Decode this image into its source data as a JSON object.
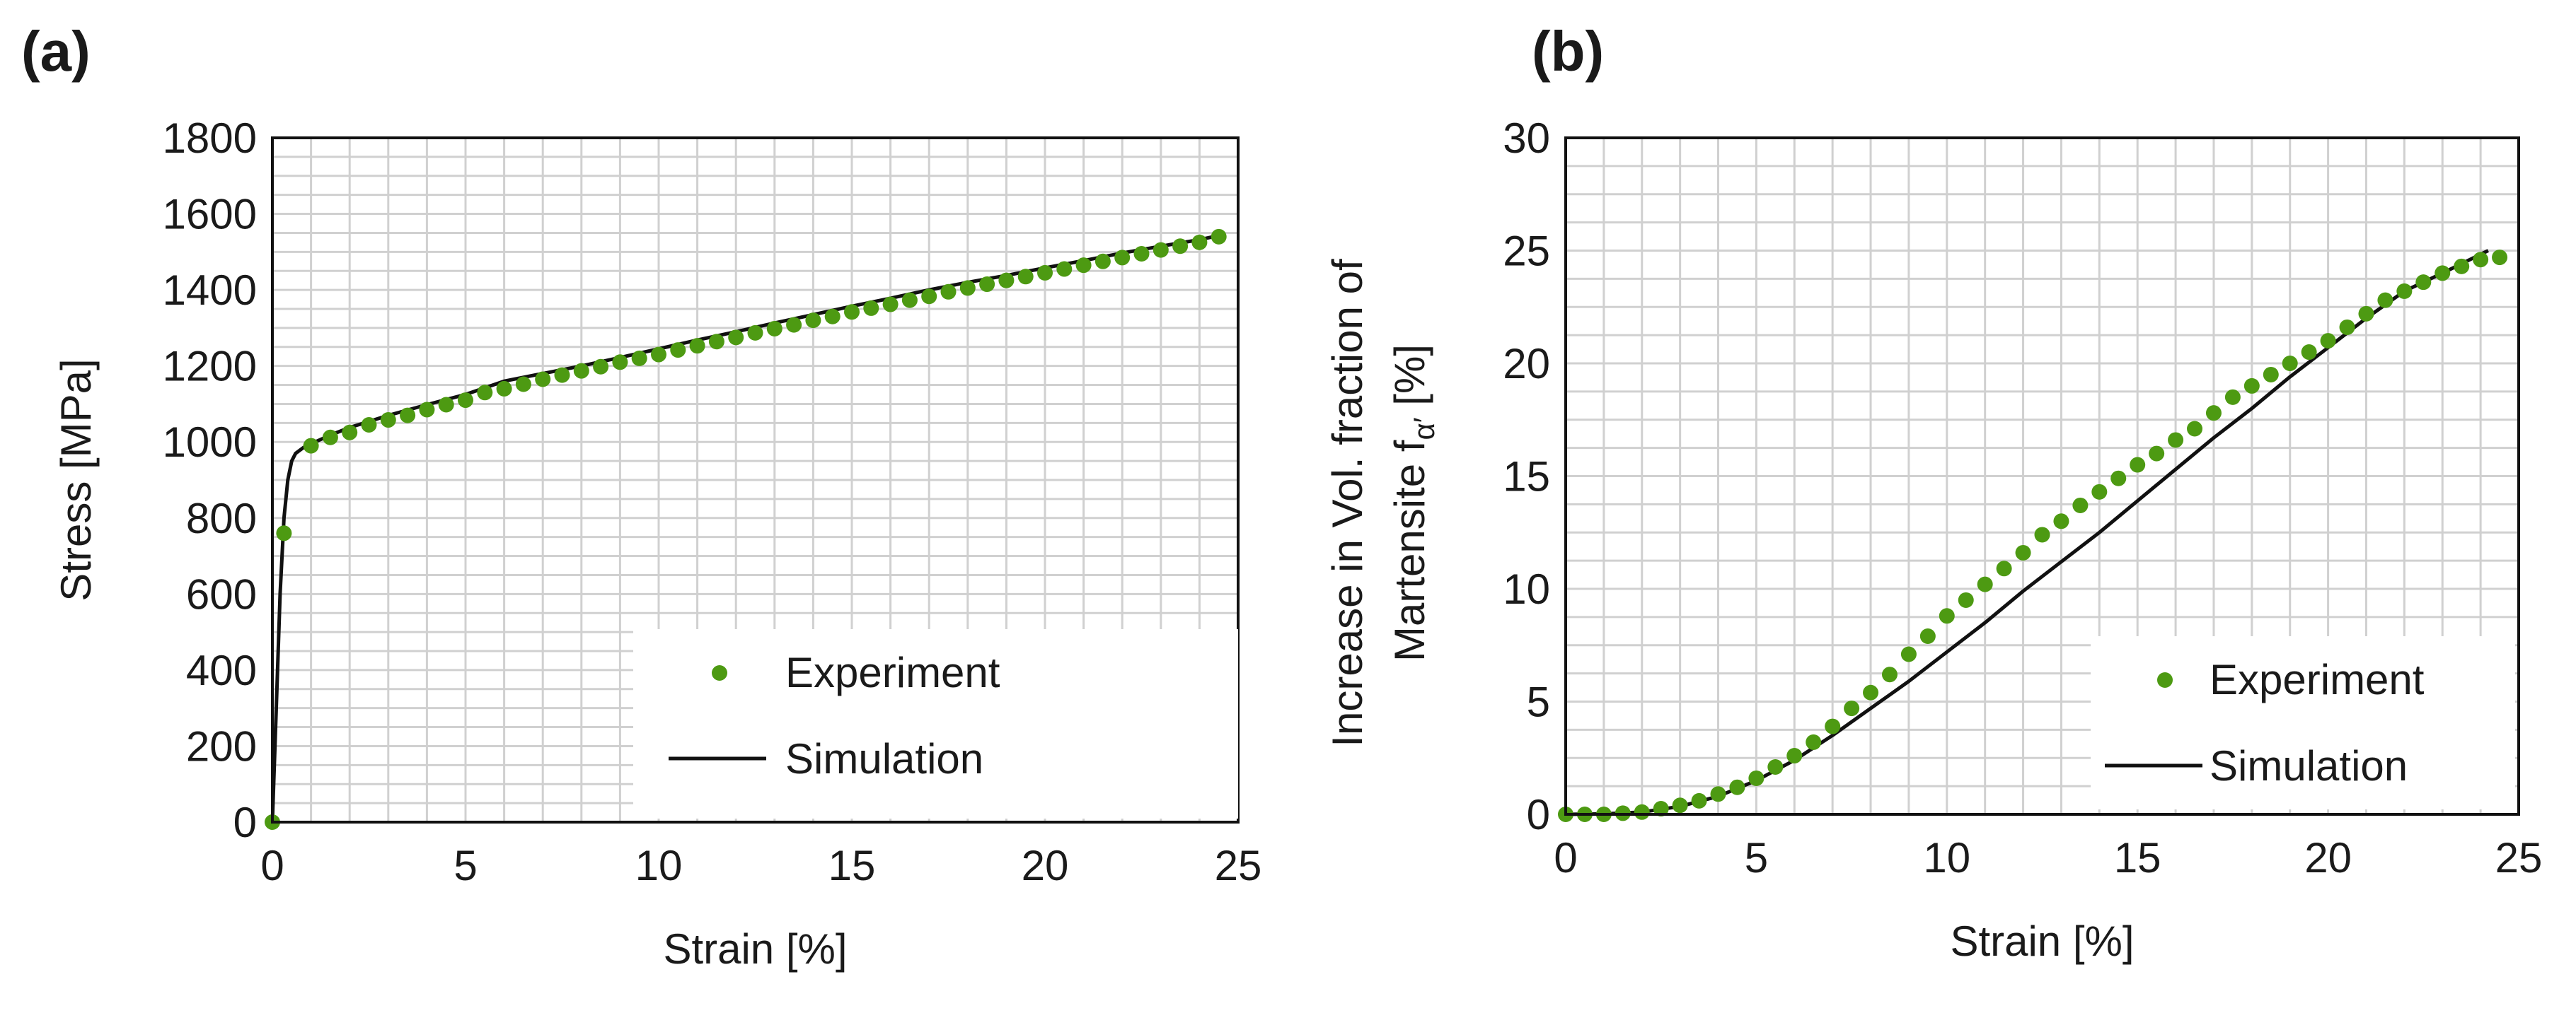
{
  "figure": {
    "panels": [
      {
        "panel_label": "(a)",
        "xlabel": "Strain [%]",
        "ylabel": "Stress [MPa]",
        "legend": {
          "experiment": "Experiment",
          "simulation": "Simulation"
        }
      },
      {
        "panel_label": "(b)",
        "xlabel": "Strain [%]",
        "ylabel_line1": "Increase in Vol. fraction of",
        "ylabel_line2_prefix": "Martensite f",
        "ylabel_line2_sub": "α′",
        "ylabel_line2_suffix": " [%]",
        "legend": {
          "experiment": "Experiment",
          "simulation": "Simulation"
        }
      }
    ]
  },
  "chart_data": [
    {
      "type": "scatter",
      "title": "",
      "xlabel": "Strain [%]",
      "ylabel": "Stress [MPa]",
      "xlim": [
        0,
        25
      ],
      "ylim": [
        0,
        1800
      ],
      "xticks": [
        0,
        5,
        10,
        15,
        20,
        25
      ],
      "yticks": [
        0,
        200,
        400,
        600,
        800,
        1000,
        1200,
        1400,
        1600,
        1800
      ],
      "grid": true,
      "legend_position": "bottom-right",
      "colors": {
        "experiment": "#4d9a12",
        "simulation": "#111111"
      },
      "series": [
        {
          "name": "Experiment",
          "style": "markers",
          "x": [
            0,
            0.3,
            1,
            1.5,
            2,
            2.5,
            3,
            3.5,
            4,
            4.5,
            5,
            5.5,
            6,
            6.5,
            7,
            7.5,
            8,
            8.5,
            9,
            9.5,
            10,
            10.5,
            11,
            11.5,
            12,
            12.5,
            13,
            13.5,
            14,
            14.5,
            15,
            15.5,
            16,
            16.5,
            17,
            17.5,
            18,
            18.5,
            19,
            19.5,
            20,
            20.5,
            21,
            21.5,
            22,
            22.5,
            23,
            23.5,
            24,
            24.5
          ],
          "y": [
            0,
            760,
            990,
            1012,
            1025,
            1045,
            1058,
            1070,
            1085,
            1098,
            1110,
            1130,
            1140,
            1152,
            1165,
            1176,
            1187,
            1198,
            1210,
            1220,
            1230,
            1242,
            1253,
            1264,
            1275,
            1287,
            1298,
            1308,
            1320,
            1330,
            1342,
            1352,
            1362,
            1373,
            1383,
            1395,
            1405,
            1415,
            1425,
            1435,
            1445,
            1455,
            1465,
            1475,
            1485,
            1495,
            1505,
            1515,
            1525,
            1540
          ]
        },
        {
          "name": "Simulation",
          "style": "line",
          "x": [
            0,
            0.1,
            0.2,
            0.3,
            0.4,
            0.5,
            0.6,
            0.8,
            1.0,
            1.5,
            2,
            3,
            4,
            5,
            6,
            7,
            8,
            9,
            10,
            11,
            12,
            13,
            14,
            15,
            16,
            17,
            18,
            19,
            20,
            21,
            22,
            23,
            24,
            24.6
          ],
          "y": [
            0,
            300,
            600,
            800,
            900,
            950,
            970,
            985,
            995,
            1018,
            1038,
            1070,
            1098,
            1125,
            1160,
            1180,
            1200,
            1222,
            1245,
            1268,
            1290,
            1313,
            1335,
            1357,
            1378,
            1400,
            1420,
            1438,
            1458,
            1477,
            1497,
            1515,
            1532,
            1545
          ]
        }
      ]
    },
    {
      "type": "scatter",
      "title": "",
      "xlabel": "Strain [%]",
      "ylabel": "Increase in Vol. fraction of Martensite fα′ [%]",
      "xlim": [
        0,
        25
      ],
      "ylim": [
        0,
        30
      ],
      "xticks": [
        0,
        5,
        10,
        15,
        20,
        25
      ],
      "yticks": [
        0,
        5,
        10,
        15,
        20,
        25,
        30
      ],
      "grid": true,
      "legend_position": "bottom-right",
      "colors": {
        "experiment": "#4d9a12",
        "simulation": "#111111"
      },
      "series": [
        {
          "name": "Experiment",
          "style": "markers",
          "x": [
            0,
            0.5,
            1,
            1.5,
            2,
            2.5,
            3,
            3.5,
            4,
            4.5,
            5,
            5.5,
            6,
            6.5,
            7,
            7.5,
            8,
            8.5,
            9,
            9.5,
            10,
            10.5,
            11,
            11.5,
            12,
            12.5,
            13,
            13.5,
            14,
            14.5,
            15,
            15.5,
            16,
            16.5,
            17,
            17.5,
            18,
            18.5,
            19,
            19.5,
            20,
            20.5,
            21,
            21.5,
            22,
            22.5,
            23,
            23.5,
            24,
            24.5
          ],
          "y": [
            0,
            0,
            0,
            0.05,
            0.1,
            0.25,
            0.4,
            0.6,
            0.9,
            1.2,
            1.6,
            2.1,
            2.6,
            3.2,
            3.9,
            4.7,
            5.4,
            6.2,
            7.1,
            7.9,
            8.8,
            9.5,
            10.2,
            10.9,
            11.6,
            12.4,
            13.0,
            13.7,
            14.3,
            14.9,
            15.5,
            16.0,
            16.6,
            17.1,
            17.8,
            18.5,
            19.0,
            19.5,
            20.0,
            20.5,
            21.0,
            21.6,
            22.2,
            22.8,
            23.2,
            23.6,
            24.0,
            24.3,
            24.6,
            24.7
          ]
        },
        {
          "name": "Simulation",
          "style": "line",
          "x": [
            0,
            1,
            2,
            3,
            4,
            5,
            6,
            7,
            8,
            9,
            10,
            11,
            12,
            13,
            14,
            15,
            16,
            17,
            18,
            19,
            20,
            21,
            22,
            23,
            24.2
          ],
          "y": [
            0,
            0.02,
            0.1,
            0.35,
            0.8,
            1.5,
            2.4,
            3.5,
            4.7,
            5.9,
            7.2,
            8.5,
            9.9,
            11.2,
            12.5,
            13.9,
            15.3,
            16.7,
            18.0,
            19.4,
            20.7,
            22.0,
            23.2,
            24.0,
            25.0
          ]
        }
      ]
    }
  ]
}
